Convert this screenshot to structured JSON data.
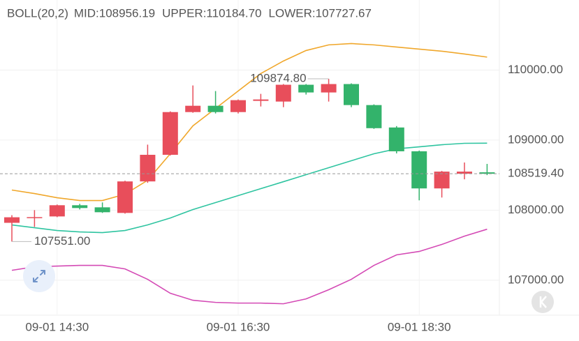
{
  "chart_data": {
    "type": "candlestick",
    "legend_title": "BOLL(20,2)",
    "categories": [
      null,
      null,
      "09-01 14:30",
      null,
      null,
      null,
      null,
      null,
      null,
      null,
      "09-01 16:30",
      null,
      null,
      null,
      null,
      null,
      null,
      null,
      "09-01 18:30",
      null,
      null,
      null
    ],
    "candles": {
      "up_color": "#e84e5b",
      "down_color": "#33b36b",
      "open": [
        107819,
        107890,
        107910,
        108070,
        108040,
        107960,
        108410,
        108790,
        109400,
        109490,
        109400,
        109560,
        109550,
        109790,
        109680,
        109800,
        109500,
        109180,
        108840,
        108310,
        108520,
        108540
      ],
      "high": [
        107928,
        108000,
        108080,
        108090,
        108110,
        108420,
        108935,
        109410,
        109780,
        109700,
        109580,
        109660,
        109800,
        109800,
        109874.8,
        109810,
        109510,
        109200,
        108850,
        108560,
        108680,
        108660
      ],
      "low": [
        107551,
        107760,
        107900,
        108010,
        107960,
        107950,
        108390,
        108780,
        109390,
        109380,
        109380,
        109480,
        109470,
        109650,
        109550,
        109470,
        109160,
        108810,
        108140,
        108180,
        108440,
        108500
      ],
      "close": [
        107898,
        107900,
        108070,
        108030,
        107970,
        108410,
        108790,
        109400,
        109490,
        109400,
        109570,
        109580,
        109790,
        109680,
        109800,
        109500,
        109170,
        108840,
        108310,
        108550,
        108550,
        108519.4
      ]
    },
    "series": [
      {
        "name": "MID:108956.19",
        "color": "#2ec4a0",
        "values": [
          107789,
          107749,
          107709,
          107689,
          107679,
          107709,
          107789,
          107888,
          108008,
          108108,
          108207,
          108307,
          108406,
          108506,
          108606,
          108705,
          108805,
          108875,
          108904,
          108934,
          108954,
          108956.19
        ]
      },
      {
        "name": "UPPER:110184.70",
        "color": "#f0a72b",
        "values": [
          108287,
          108237,
          108177,
          108137,
          108137,
          108227,
          108426,
          108805,
          109203,
          109452,
          109701,
          109950,
          110129,
          110279,
          110359,
          110378,
          110359,
          110329,
          110299,
          110269,
          110229,
          110184.7
        ]
      },
      {
        "name": "LOWER:107727.67",
        "color": "#d44ab5",
        "values": [
          107141,
          107191,
          107201,
          107211,
          107211,
          107161,
          107012,
          106813,
          106713,
          106683,
          106673,
          106673,
          106663,
          106733,
          106863,
          107012,
          107211,
          107361,
          107410,
          107510,
          107629,
          107727.67
        ]
      }
    ],
    "ylim": [
      106500,
      111000
    ],
    "yticks": [
      {
        "value": 107000,
        "label": "107000.00"
      },
      {
        "value": 108000,
        "label": "108000.00"
      },
      {
        "value": 109000,
        "label": "109000.00"
      },
      {
        "value": 110000,
        "label": "110000.00"
      }
    ],
    "grid": true,
    "last_price": {
      "value": 108519.4,
      "label": "108519.40"
    },
    "max_marker": {
      "value": 109874.8,
      "label": "109874.80"
    },
    "min_marker": {
      "value": 107551,
      "label": "107551.00"
    }
  }
}
